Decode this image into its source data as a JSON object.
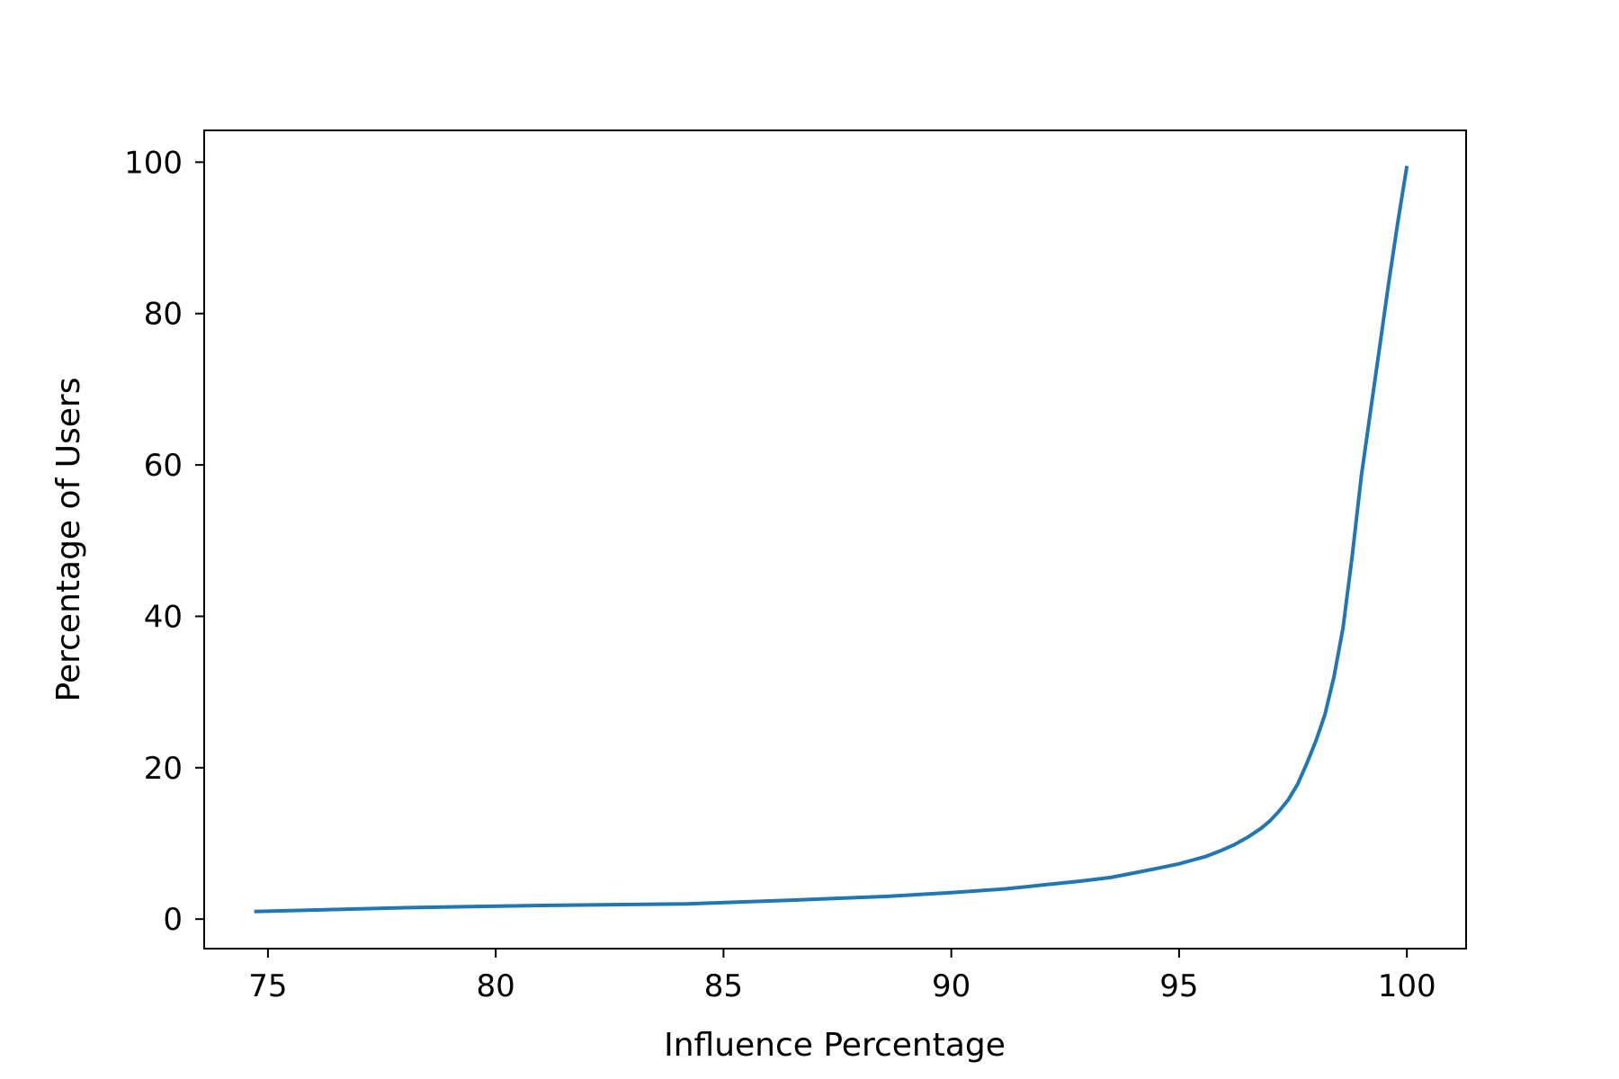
{
  "chart_data": {
    "type": "line",
    "title": "",
    "xlabel": "Influence Percentage",
    "ylabel": "Percentage of Users",
    "xlim": [
      73.6,
      101.3
    ],
    "ylim": [
      -3.9,
      104.2
    ],
    "xticks": [
      75,
      80,
      85,
      90,
      95,
      100
    ],
    "yticks": [
      0,
      20,
      40,
      60,
      80,
      100
    ],
    "grid": false,
    "legend": "none",
    "series": [
      {
        "color": "#1f77b4",
        "x": [
          74.7,
          78.0,
          81.0,
          84.2,
          86.5,
          88.6,
          90.0,
          91.2,
          92.0,
          92.8,
          93.5,
          94.1,
          94.6,
          95.0,
          95.3,
          95.6,
          95.9,
          96.2,
          96.5,
          96.8,
          97.0,
          97.2,
          97.4,
          97.6,
          97.8,
          98.0,
          98.2,
          98.4,
          98.6,
          98.8,
          99.0,
          99.2,
          99.4,
          99.6,
          99.8,
          100.0
        ],
        "y": [
          1,
          1.5,
          1.8,
          2.0,
          2.5,
          3.0,
          3.5,
          4.0,
          4.5,
          5.0,
          5.5,
          6.2,
          6.8,
          7.3,
          7.8,
          8.3,
          9.0,
          9.8,
          10.8,
          12.0,
          13.0,
          14.3,
          15.8,
          17.8,
          20.5,
          23.5,
          27.0,
          32.0,
          38.5,
          48.0,
          58.5,
          67.0,
          75.5,
          84.0,
          92.0,
          99.5
        ]
      }
    ]
  }
}
